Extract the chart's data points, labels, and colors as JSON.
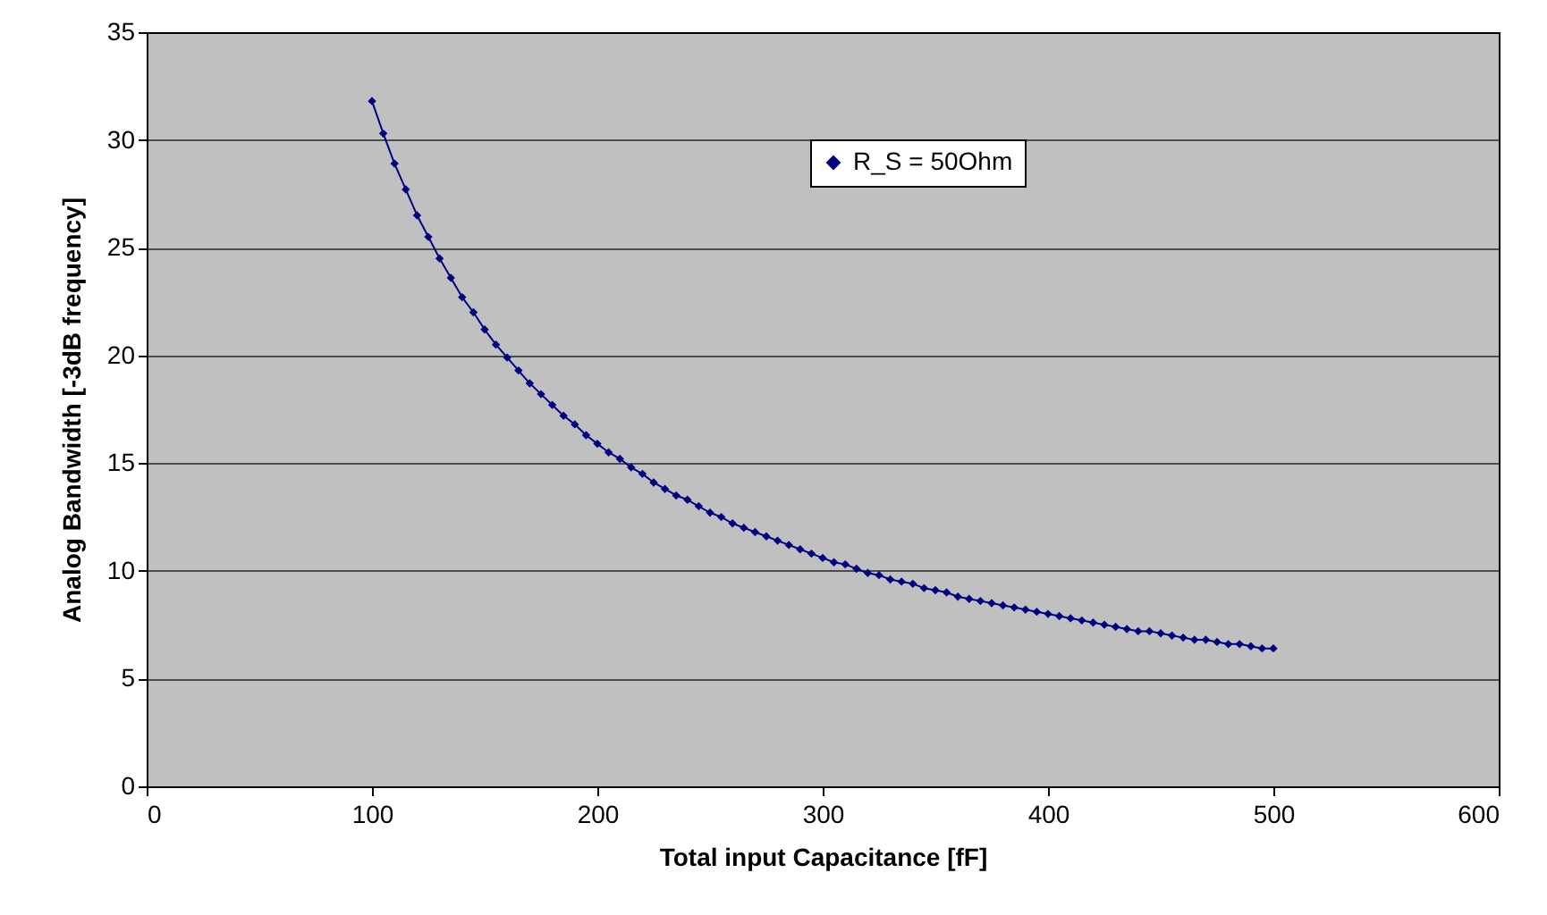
{
  "chart_data": {
    "type": "line",
    "xlabel": "Total input Capacitance [fF]",
    "ylabel": "Analog Bandwidth [-3dB frequency]",
    "x": [
      100,
      105,
      110,
      115,
      120,
      125,
      130,
      135,
      140,
      145,
      150,
      155,
      160,
      165,
      170,
      175,
      180,
      185,
      190,
      195,
      200,
      205,
      210,
      215,
      220,
      225,
      230,
      235,
      240,
      245,
      250,
      255,
      260,
      265,
      270,
      275,
      280,
      285,
      290,
      295,
      300,
      305,
      310,
      315,
      320,
      325,
      330,
      335,
      340,
      345,
      350,
      355,
      360,
      365,
      370,
      375,
      380,
      385,
      390,
      395,
      400,
      405,
      410,
      415,
      420,
      425,
      430,
      435,
      440,
      445,
      450,
      455,
      460,
      465,
      470,
      475,
      480,
      485,
      490,
      495,
      500
    ],
    "series": [
      {
        "name": "R_S = 50Ohm",
        "color": "#000080",
        "values": [
          31.8,
          30.3,
          28.9,
          27.7,
          26.5,
          25.5,
          24.5,
          23.6,
          22.7,
          22.0,
          21.2,
          20.5,
          19.9,
          19.3,
          18.7,
          18.2,
          17.7,
          17.2,
          16.8,
          16.3,
          15.9,
          15.5,
          15.2,
          14.8,
          14.5,
          14.1,
          13.8,
          13.5,
          13.3,
          13.0,
          12.7,
          12.5,
          12.2,
          12.0,
          11.8,
          11.6,
          11.4,
          11.2,
          11.0,
          10.8,
          10.6,
          10.4,
          10.3,
          10.1,
          9.9,
          9.8,
          9.6,
          9.5,
          9.4,
          9.2,
          9.1,
          9.0,
          8.8,
          8.7,
          8.6,
          8.5,
          8.4,
          8.3,
          8.2,
          8.1,
          8.0,
          7.9,
          7.8,
          7.7,
          7.6,
          7.5,
          7.4,
          7.3,
          7.2,
          7.2,
          7.1,
          7.0,
          6.9,
          6.8,
          6.8,
          6.7,
          6.6,
          6.6,
          6.5,
          6.4,
          6.4
        ]
      }
    ],
    "xlim": [
      0,
      600
    ],
    "xticks": [
      0,
      100,
      200,
      300,
      400,
      500,
      600
    ],
    "ylim": [
      0,
      35
    ],
    "yticks": [
      0,
      5,
      10,
      15,
      20,
      25,
      30,
      35
    ],
    "grid": "y",
    "legend": "top right",
    "marker": "diamond",
    "line_style": "solid"
  }
}
